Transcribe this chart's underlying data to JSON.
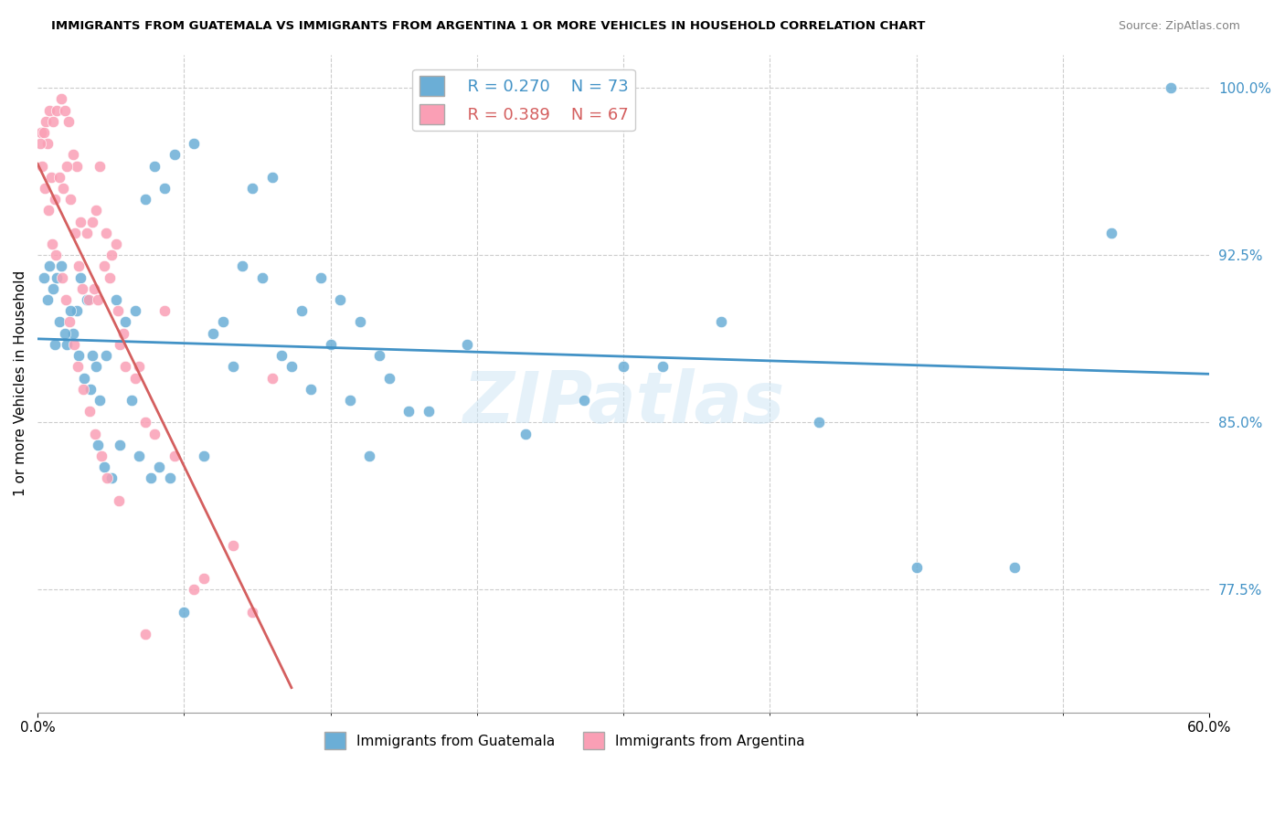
{
  "title": "IMMIGRANTS FROM GUATEMALA VS IMMIGRANTS FROM ARGENTINA 1 OR MORE VEHICLES IN HOUSEHOLD CORRELATION CHART",
  "source": "Source: ZipAtlas.com",
  "ylabel_label": "1 or more Vehicles in Household",
  "xlim": [
    0.0,
    60.0
  ],
  "ylim": [
    72.0,
    101.5
  ],
  "yticks": [
    77.5,
    85.0,
    92.5,
    100.0
  ],
  "legend_r1": "R = 0.270",
  "legend_n1": "N = 73",
  "legend_r2": "R = 0.389",
  "legend_n2": "N = 67",
  "blue_color": "#6baed6",
  "pink_color": "#fa9fb5",
  "line_blue": "#4292c6",
  "line_pink": "#d45f5f",
  "watermark": "ZIPatlas",
  "blue_scatter_x": [
    0.5,
    0.8,
    1.0,
    1.2,
    1.5,
    1.8,
    2.0,
    2.2,
    2.5,
    2.8,
    3.0,
    3.2,
    3.5,
    4.0,
    4.5,
    5.0,
    5.5,
    6.0,
    6.5,
    7.0,
    8.0,
    9.0,
    10.0,
    11.0,
    12.0,
    13.0,
    14.0,
    15.0,
    16.0,
    17.0,
    18.0,
    19.0,
    20.0,
    22.0,
    25.0,
    28.0,
    30.0,
    32.0,
    35.0,
    40.0,
    45.0,
    50.0,
    55.0,
    58.0,
    0.3,
    0.6,
    0.9,
    1.1,
    1.4,
    1.7,
    2.1,
    2.4,
    2.7,
    3.1,
    3.4,
    3.8,
    4.2,
    4.8,
    5.2,
    5.8,
    6.2,
    6.8,
    7.5,
    8.5,
    9.5,
    10.5,
    11.5,
    12.5,
    13.5,
    14.5,
    15.5,
    16.5,
    17.5
  ],
  "blue_scatter_y": [
    90.5,
    91.0,
    91.5,
    92.0,
    88.5,
    89.0,
    90.0,
    91.5,
    90.5,
    88.0,
    87.5,
    86.0,
    88.0,
    90.5,
    89.5,
    90.0,
    95.0,
    96.5,
    95.5,
    97.0,
    97.5,
    89.0,
    87.5,
    95.5,
    96.0,
    87.5,
    86.5,
    88.5,
    86.0,
    83.5,
    87.0,
    85.5,
    85.5,
    88.5,
    84.5,
    86.0,
    87.5,
    87.5,
    89.5,
    85.0,
    78.5,
    78.5,
    93.5,
    100.0,
    91.5,
    92.0,
    88.5,
    89.5,
    89.0,
    90.0,
    88.0,
    87.0,
    86.5,
    84.0,
    83.0,
    82.5,
    84.0,
    86.0,
    83.5,
    82.5,
    83.0,
    82.5,
    76.5,
    83.5,
    89.5,
    92.0,
    91.5,
    88.0,
    90.0,
    91.5,
    90.5,
    89.5,
    88.0
  ],
  "pink_scatter_x": [
    0.2,
    0.4,
    0.6,
    0.8,
    1.0,
    1.2,
    1.4,
    1.6,
    1.8,
    2.0,
    2.2,
    2.5,
    2.8,
    3.0,
    3.2,
    3.5,
    3.8,
    4.0,
    4.2,
    4.5,
    5.0,
    5.5,
    6.0,
    7.0,
    8.0,
    10.0,
    12.0,
    0.3,
    0.5,
    0.7,
    0.9,
    1.1,
    1.3,
    1.5,
    1.7,
    1.9,
    2.1,
    2.3,
    2.6,
    2.9,
    3.1,
    3.4,
    3.7,
    4.1,
    4.4,
    5.2,
    6.5,
    0.15,
    0.25,
    0.35,
    0.55,
    0.75,
    0.95,
    1.25,
    1.45,
    1.65,
    1.85,
    2.05,
    2.35,
    2.65,
    2.95,
    3.25,
    3.55,
    4.15,
    5.5,
    8.5,
    11.0
  ],
  "pink_scatter_y": [
    98.0,
    98.5,
    99.0,
    98.5,
    99.0,
    99.5,
    99.0,
    98.5,
    97.0,
    96.5,
    94.0,
    93.5,
    94.0,
    94.5,
    96.5,
    93.5,
    92.5,
    93.0,
    88.5,
    87.5,
    87.0,
    85.0,
    84.5,
    83.5,
    77.5,
    79.5,
    87.0,
    98.0,
    97.5,
    96.0,
    95.0,
    96.0,
    95.5,
    96.5,
    95.0,
    93.5,
    92.0,
    91.0,
    90.5,
    91.0,
    90.5,
    92.0,
    91.5,
    90.0,
    89.0,
    87.5,
    90.0,
    97.5,
    96.5,
    95.5,
    94.5,
    93.0,
    92.5,
    91.5,
    90.5,
    89.5,
    88.5,
    87.5,
    86.5,
    85.5,
    84.5,
    83.5,
    82.5,
    81.5,
    75.5,
    78.0,
    76.5
  ]
}
